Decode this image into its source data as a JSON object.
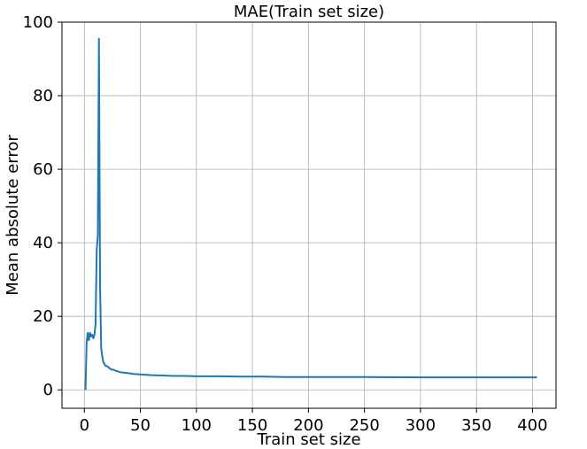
{
  "chart_data": {
    "type": "line",
    "title": "MAE(Train set size)",
    "xlabel": "Train set size",
    "ylabel": "Mean absolute error",
    "xlim": [
      -20,
      421
    ],
    "ylim": [
      -5,
      100
    ],
    "x_ticks": [
      0,
      50,
      100,
      150,
      200,
      250,
      300,
      350,
      400
    ],
    "x_tick_labels": [
      "0",
      "50",
      "100",
      "150",
      "200",
      "250",
      "300",
      "350",
      "400"
    ],
    "y_ticks": [
      0,
      20,
      40,
      60,
      80,
      100
    ],
    "y_tick_labels": [
      "0",
      "20",
      "40",
      "60",
      "80",
      "100"
    ],
    "grid": true,
    "series": [
      {
        "color": "#1f77b4",
        "x": [
          1,
          2,
          3,
          4,
          5,
          6,
          7,
          8,
          9,
          10,
          11,
          12,
          13,
          14,
          15,
          16,
          17,
          18,
          19,
          20,
          22,
          24,
          26,
          28,
          30,
          32,
          35,
          38,
          40,
          45,
          50,
          55,
          60,
          70,
          80,
          90,
          100,
          110,
          120,
          140,
          160,
          180,
          200,
          250,
          300,
          350,
          404
        ],
        "y": [
          0,
          13,
          15.5,
          13.5,
          15.5,
          14.5,
          15,
          14,
          15,
          18,
          38,
          42,
          95.5,
          28,
          11.5,
          9,
          7.5,
          7,
          6.5,
          6.5,
          6,
          5.5,
          5.5,
          5.2,
          5,
          4.8,
          4.7,
          4.6,
          4.5,
          4.3,
          4.2,
          4.1,
          4.0,
          3.9,
          3.8,
          3.8,
          3.7,
          3.7,
          3.7,
          3.6,
          3.6,
          3.5,
          3.5,
          3.5,
          3.4,
          3.4,
          3.4
        ]
      }
    ]
  }
}
